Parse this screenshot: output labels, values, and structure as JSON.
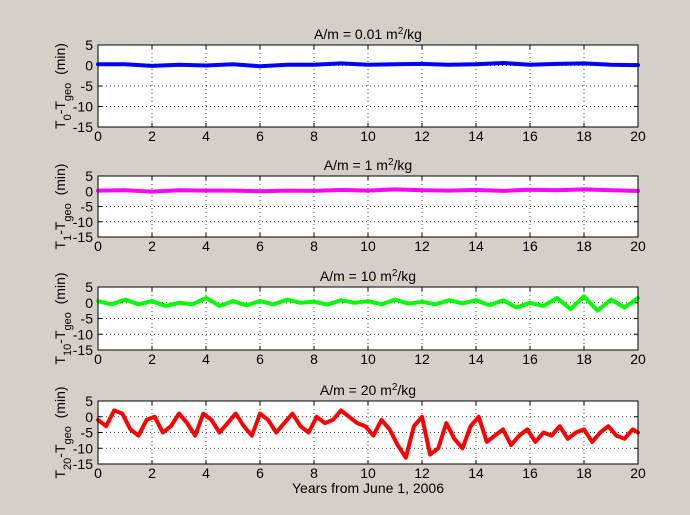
{
  "figure": {
    "background": "#d4d0c8",
    "axes_background": "#ffffff"
  },
  "chart_data": [
    {
      "type": "line",
      "title_prefix": "A/m = 0.01 m",
      "title_sup": "2",
      "title_suffix": "/kg",
      "ylabel_main": "T",
      "ylabel_sub1": "0",
      "ylabel_mid": "-T",
      "ylabel_sub2": "geo",
      "ylabel_unit": "  (min)",
      "xlabel": "",
      "xlim": [
        0,
        20
      ],
      "ylim": [
        -15,
        5
      ],
      "xticks": [
        0,
        2,
        4,
        6,
        8,
        10,
        12,
        14,
        16,
        18,
        20
      ],
      "yticks": [
        -15,
        -10,
        -5,
        0,
        5
      ],
      "grid": true,
      "series": [
        {
          "color": "#0000ff",
          "x": [
            0,
            1,
            2,
            3,
            4,
            5,
            6,
            7,
            8,
            9,
            10,
            11,
            12,
            13,
            14,
            15,
            16,
            17,
            18,
            19,
            20
          ],
          "y": [
            0.3,
            0.3,
            -0.1,
            0.2,
            0,
            0.3,
            -0.2,
            0.2,
            0.2,
            0.5,
            0.2,
            0.3,
            0.4,
            0.2,
            0.3,
            0.6,
            0.2,
            0.4,
            0.5,
            0.2,
            0.1
          ]
        }
      ]
    },
    {
      "type": "line",
      "title_prefix": "A/m = 1 m",
      "title_sup": "2",
      "title_suffix": "/kg",
      "ylabel_main": "T",
      "ylabel_sub1": "1",
      "ylabel_mid": "-T",
      "ylabel_sub2": "geo",
      "ylabel_unit": "  (min)",
      "xlabel": "",
      "xlim": [
        0,
        20
      ],
      "ylim": [
        -15,
        5
      ],
      "xticks": [
        0,
        2,
        4,
        6,
        8,
        10,
        12,
        14,
        16,
        18,
        20
      ],
      "yticks": [
        -15,
        -10,
        -5,
        0,
        5
      ],
      "grid": true,
      "series": [
        {
          "color": "#ff00ff",
          "x": [
            0,
            1,
            2,
            3,
            4,
            5,
            6,
            7,
            8,
            9,
            10,
            11,
            12,
            13,
            14,
            15,
            16,
            17,
            18,
            19,
            20
          ],
          "y": [
            0.2,
            0.3,
            -0.1,
            0.3,
            0.2,
            0.2,
            0,
            0.2,
            0.1,
            0.4,
            0.2,
            0.6,
            0.3,
            0.2,
            0.4,
            0.1,
            0.5,
            0.3,
            0.6,
            0.3,
            0.1
          ]
        }
      ]
    },
    {
      "type": "line",
      "title_prefix": "A/m = 10 m",
      "title_sup": "2",
      "title_suffix": "/kg",
      "ylabel_main": "T",
      "ylabel_sub1": "10",
      "ylabel_mid": "-T",
      "ylabel_sub2": "geo",
      "ylabel_unit": "  (min)",
      "xlabel": "",
      "xlim": [
        0,
        20
      ],
      "ylim": [
        -15,
        5
      ],
      "xticks": [
        0,
        2,
        4,
        6,
        8,
        10,
        12,
        14,
        16,
        18,
        20
      ],
      "yticks": [
        -15,
        -10,
        -5,
        0,
        5
      ],
      "grid": true,
      "series": [
        {
          "color": "#00ff00",
          "x": [
            0,
            0.5,
            1,
            1.5,
            2,
            2.5,
            3,
            3.5,
            4,
            4.5,
            5,
            5.5,
            6,
            6.5,
            7,
            7.5,
            8,
            8.5,
            9,
            9.5,
            10,
            10.5,
            11,
            11.5,
            12,
            12.5,
            13,
            13.5,
            14,
            14.5,
            15,
            15.5,
            16,
            16.5,
            17,
            17.5,
            18,
            18.5,
            19,
            19.5,
            20
          ],
          "y": [
            0.5,
            -0.5,
            1,
            -0.5,
            0.5,
            -1,
            0,
            -0.5,
            1.5,
            -1,
            0.5,
            -0.8,
            0.5,
            -0.5,
            1,
            0,
            0.3,
            -0.6,
            0.8,
            0,
            0.5,
            -0.5,
            1,
            -0.3,
            0.3,
            -0.5,
            0.8,
            -0.2,
            0.8,
            -0.8,
            0.8,
            -1.5,
            0,
            -1,
            1.5,
            -2,
            2,
            -2.5,
            1,
            -1.5,
            1.5
          ]
        }
      ]
    },
    {
      "type": "line",
      "title_prefix": "A/m = 20 m",
      "title_sup": "2",
      "title_suffix": "/kg",
      "ylabel_main": "T",
      "ylabel_sub1": "20",
      "ylabel_mid": "-T",
      "ylabel_sub2": "geo",
      "ylabel_unit": "  (min)",
      "xlabel": "Years from June 1, 2006",
      "xlim": [
        0,
        20
      ],
      "ylim": [
        -15,
        5
      ],
      "xticks": [
        0,
        2,
        4,
        6,
        8,
        10,
        12,
        14,
        16,
        18,
        20
      ],
      "yticks": [
        -15,
        -10,
        -5,
        0,
        5
      ],
      "grid": true,
      "series": [
        {
          "color": "#ff0000",
          "x": [
            0,
            0.3,
            0.6,
            0.9,
            1.2,
            1.5,
            1.8,
            2.1,
            2.4,
            2.7,
            3.0,
            3.3,
            3.6,
            3.9,
            4.2,
            4.5,
            4.8,
            5.1,
            5.4,
            5.7,
            6.0,
            6.3,
            6.6,
            6.9,
            7.2,
            7.5,
            7.8,
            8.1,
            8.4,
            8.7,
            9.0,
            9.3,
            9.6,
            9.9,
            10.2,
            10.5,
            10.8,
            11.1,
            11.4,
            11.7,
            12.0,
            12.3,
            12.6,
            12.9,
            13.2,
            13.5,
            13.8,
            14.1,
            14.4,
            14.7,
            15.0,
            15.3,
            15.6,
            15.9,
            16.2,
            16.5,
            16.8,
            17.1,
            17.4,
            17.7,
            18.0,
            18.3,
            18.6,
            18.9,
            19.2,
            19.5,
            19.8,
            20.0
          ],
          "y": [
            -1,
            -3,
            2,
            1,
            -4,
            -6,
            -1,
            0,
            -5,
            -3,
            1,
            -2,
            -6,
            1,
            -1,
            -5,
            -2,
            1,
            -3,
            -6,
            1,
            -1,
            -5,
            -2,
            1,
            -3,
            -5,
            0,
            -2,
            -1,
            2,
            0,
            -2,
            -3,
            -6,
            -1,
            -4,
            -9,
            -13,
            -3,
            0,
            -12,
            -10,
            -2,
            -7,
            -10,
            -3,
            0,
            -8,
            -6,
            -4,
            -9,
            -6,
            -4,
            -8,
            -5,
            -6,
            -3,
            -7,
            -5,
            -4,
            -8,
            -5,
            -3,
            -6,
            -7,
            -4,
            -5
          ]
        }
      ]
    }
  ]
}
